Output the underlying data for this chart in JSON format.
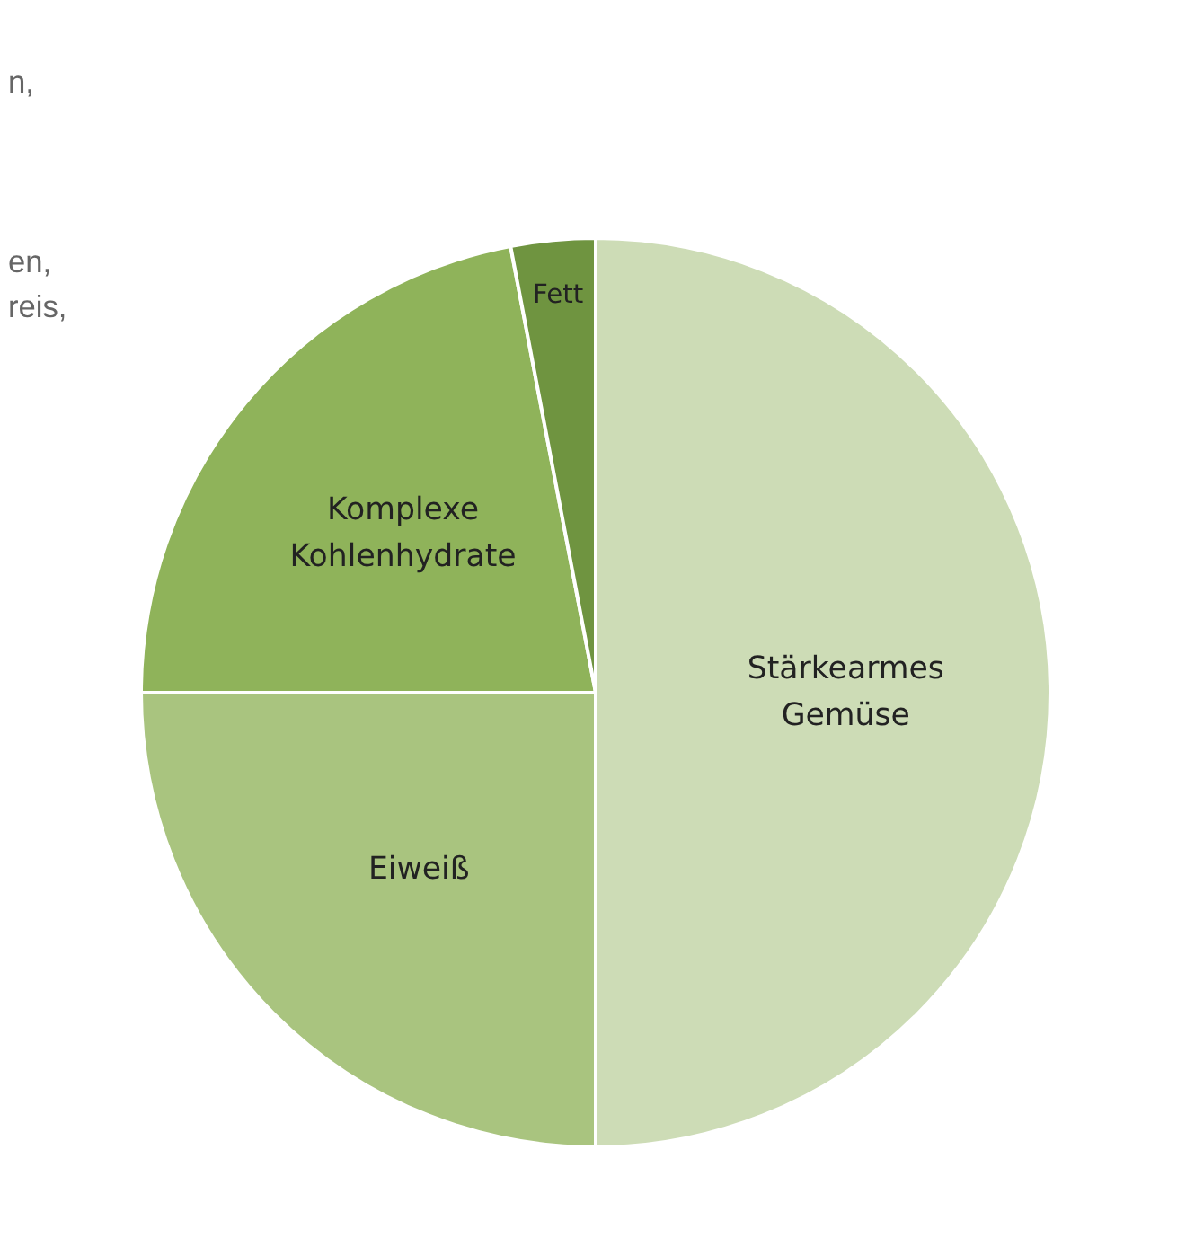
{
  "chart_data": {
    "type": "pie",
    "categories": [
      "Stärkearmes Gemüse",
      "Eiweiß",
      "Komplexe Kohlenhydrate",
      "Fett"
    ],
    "values": [
      50,
      25,
      22,
      3
    ],
    "colors": [
      "#cddcb6",
      "#a9c47f",
      "#8fb35a",
      "#6f9440"
    ],
    "annotations": [
      "n,",
      "en,",
      "reis,"
    ]
  }
}
